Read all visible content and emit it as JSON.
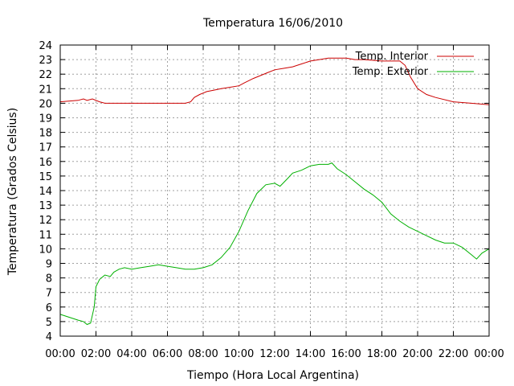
{
  "chart_data": {
    "type": "line",
    "title": "Temperatura 16/06/2010",
    "xlabel": "Tiempo (Hora Local Argentina)",
    "ylabel": "Temperatura (Grados Celsius)",
    "xlim": [
      0,
      24
    ],
    "ylim": [
      4,
      24
    ],
    "grid": true,
    "legend_position": "top-right",
    "x_tick_labels": [
      "00:00",
      "02:00",
      "04:00",
      "06:00",
      "08:00",
      "10:00",
      "12:00",
      "14:00",
      "16:00",
      "18:00",
      "20:00",
      "22:00",
      "00:00"
    ],
    "y_ticks": [
      4,
      5,
      6,
      7,
      8,
      9,
      10,
      11,
      12,
      13,
      14,
      15,
      16,
      17,
      18,
      19,
      20,
      21,
      22,
      23,
      24
    ],
    "series": [
      {
        "name": "Temp. Interior",
        "color": "#cc0000",
        "x": [
          0,
          1,
          1.3,
          1.5,
          1.8,
          2.2,
          2.5,
          3,
          4,
          5,
          6,
          7,
          7.3,
          7.5,
          7.8,
          8.2,
          8.6,
          9,
          9.5,
          10,
          10.3,
          10.8,
          11.2,
          11.6,
          12,
          12.5,
          13,
          13.5,
          14,
          14.5,
          15,
          16,
          16.5,
          17,
          18,
          19,
          19.3,
          19.6,
          20,
          20.5,
          21,
          22,
          23,
          24
        ],
        "y": [
          20.1,
          20.2,
          20.3,
          20.2,
          20.3,
          20.1,
          20.0,
          20.0,
          20.0,
          20.0,
          20.0,
          20.0,
          20.1,
          20.4,
          20.6,
          20.8,
          20.9,
          21.0,
          21.1,
          21.2,
          21.4,
          21.7,
          21.9,
          22.1,
          22.3,
          22.4,
          22.5,
          22.7,
          22.9,
          23.0,
          23.1,
          23.1,
          23.0,
          23.0,
          22.9,
          22.9,
          22.6,
          21.8,
          21.0,
          20.6,
          20.4,
          20.1,
          20.0,
          19.9
        ]
      },
      {
        "name": "Temp. Exterior",
        "color": "#00b000",
        "x": [
          0,
          0.5,
          1,
          1.3,
          1.5,
          1.7,
          1.9,
          2.0,
          2.2,
          2.5,
          2.8,
          3,
          3.3,
          3.6,
          4,
          4.5,
          5,
          5.5,
          6,
          6.5,
          7,
          7.5,
          8,
          8.5,
          9,
          9.5,
          10,
          10.5,
          11,
          11.5,
          12,
          12.3,
          12.7,
          13,
          13.5,
          14,
          14.5,
          15,
          15.2,
          15.5,
          16,
          16.5,
          17,
          17.5,
          18,
          18.5,
          19,
          19.5,
          20,
          20.5,
          21,
          21.5,
          22,
          22.5,
          23,
          23.3,
          23.6,
          24
        ],
        "y": [
          5.5,
          5.3,
          5.1,
          5.0,
          4.8,
          4.9,
          6.0,
          7.4,
          7.9,
          8.2,
          8.1,
          8.4,
          8.6,
          8.7,
          8.6,
          8.7,
          8.8,
          8.9,
          8.8,
          8.7,
          8.6,
          8.6,
          8.7,
          8.9,
          9.4,
          10.1,
          11.2,
          12.6,
          13.8,
          14.4,
          14.5,
          14.3,
          14.8,
          15.2,
          15.4,
          15.7,
          15.8,
          15.8,
          15.9,
          15.5,
          15.1,
          14.6,
          14.1,
          13.7,
          13.2,
          12.4,
          11.9,
          11.5,
          11.2,
          10.9,
          10.6,
          10.4,
          10.4,
          10.1,
          9.6,
          9.3,
          9.7,
          10.0
        ]
      }
    ]
  }
}
